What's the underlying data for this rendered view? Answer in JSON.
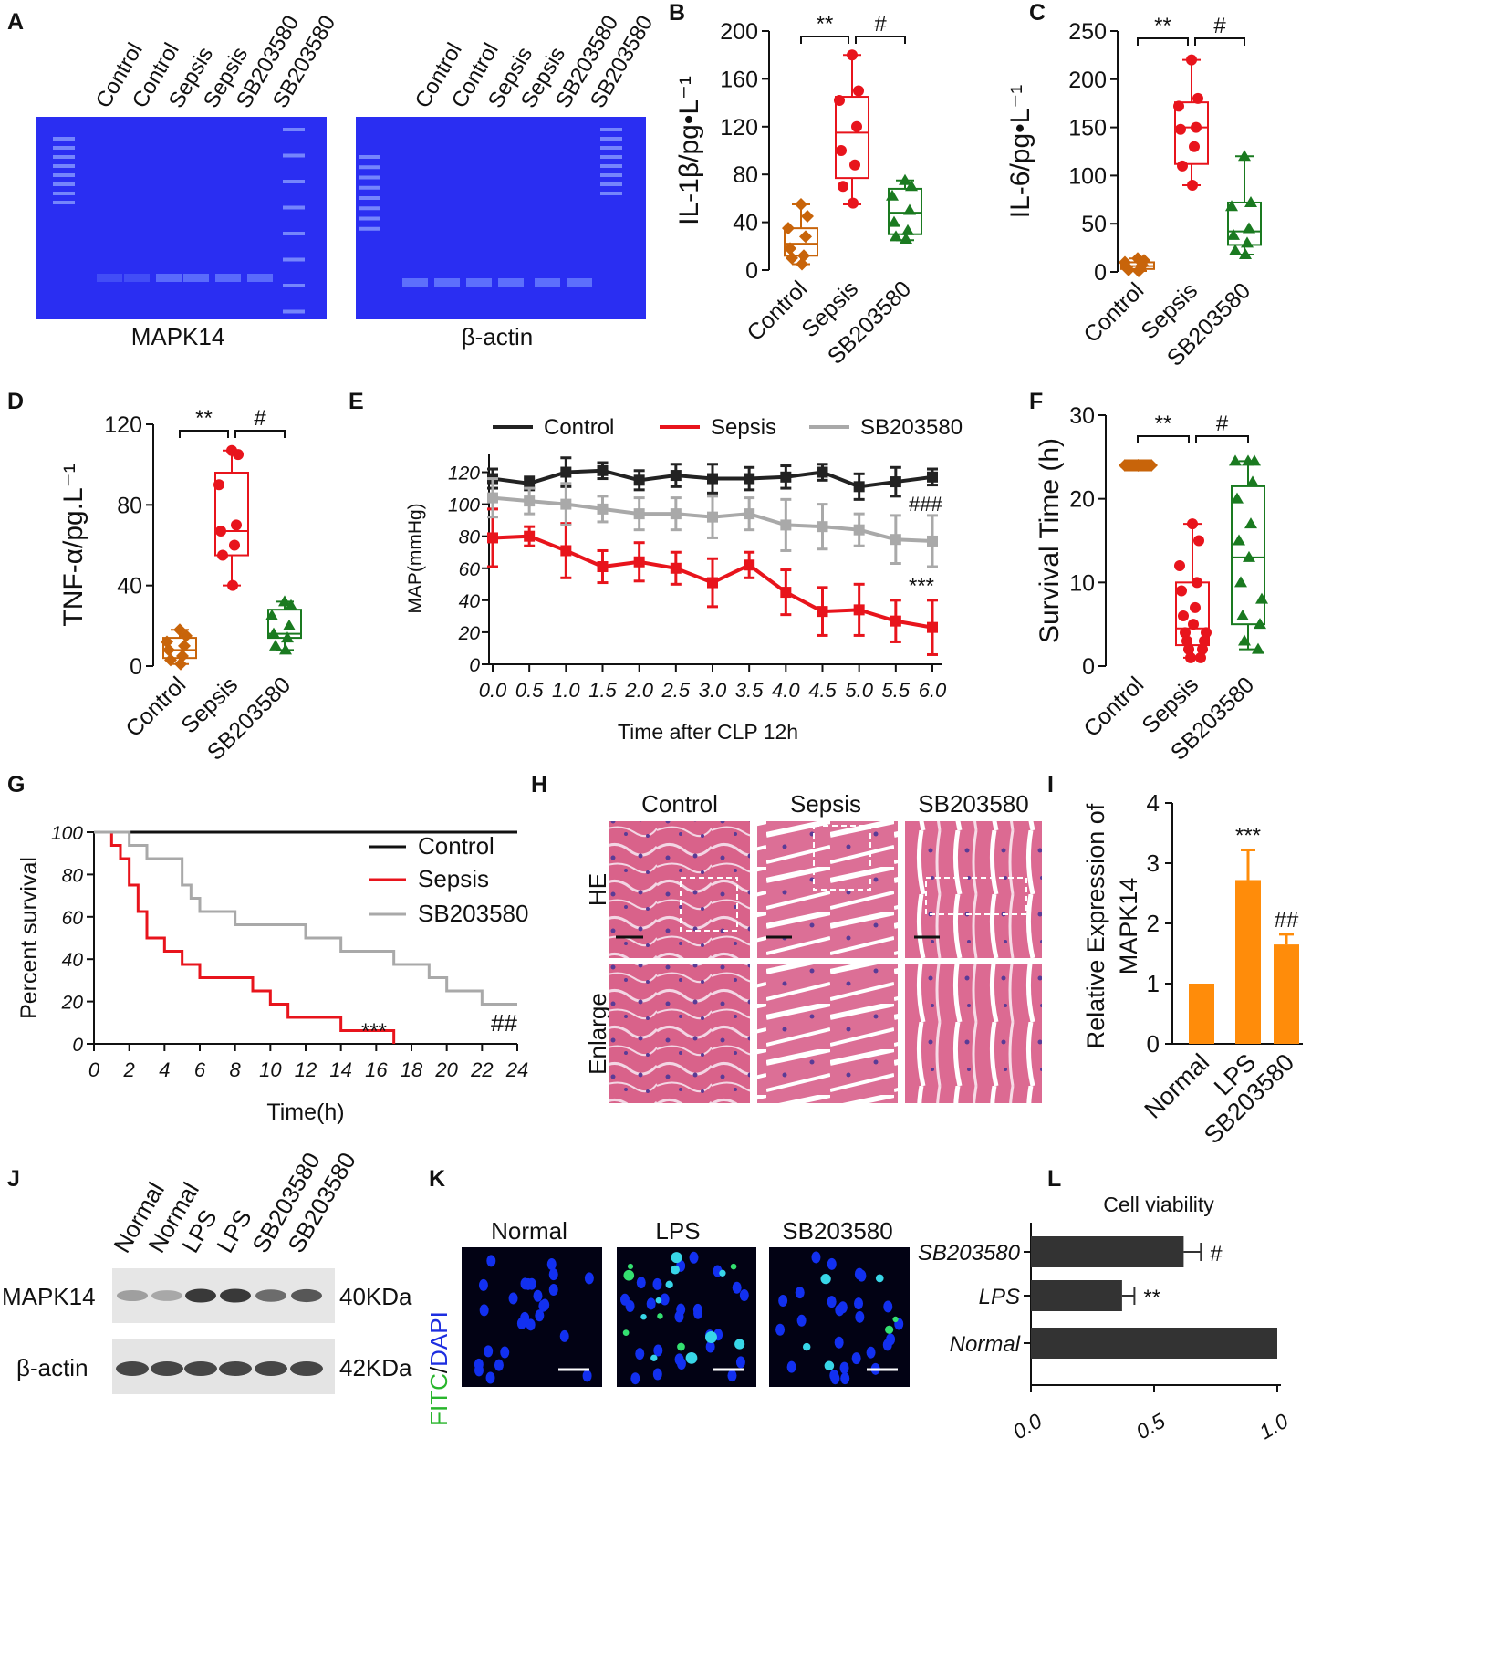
{
  "panels": {
    "A": {
      "letter": "A",
      "lanes_left": [
        "Control",
        "Control",
        "Sepsis",
        "Sepsis",
        "SB203580",
        "SB203580"
      ],
      "lanes_right": [
        "Control",
        "Control",
        "Sepsis",
        "Sepsis",
        "SB203580",
        "SB203580"
      ],
      "label_left": "MAPK14",
      "label_right": "β-actin",
      "gel_color": "#2a2ef2"
    },
    "H": {
      "letter": "H",
      "cols": [
        "Control",
        "Sepsis",
        "SB203580"
      ],
      "rows": [
        "HE",
        "Enlarge"
      ]
    },
    "J": {
      "letter": "J",
      "lanes": [
        "Normal",
        "Normal",
        "LPS",
        "LPS",
        "SB203580",
        "SB203580"
      ],
      "row1": "MAPK14",
      "row1_size": "40KDa",
      "row2": "β-actin",
      "row2_size": "42KDa",
      "band1_intensity": [
        0.35,
        0.3,
        0.85,
        0.85,
        0.6,
        0.7
      ],
      "band2_intensity": [
        0.85,
        0.85,
        0.85,
        0.85,
        0.85,
        0.85
      ]
    },
    "K": {
      "letter": "K",
      "cols": [
        "Normal",
        "LPS",
        "SB203580"
      ],
      "side_fitc": "FITC",
      "side_sep": "/",
      "side_dapi": "DAPI"
    }
  },
  "chart_data": [
    {
      "id": "B",
      "type": "box",
      "letter": "B",
      "ylabel": "IL-1β/pg•L⁻¹",
      "ylim": [
        0,
        200
      ],
      "yticks": [
        "0",
        "40",
        "80",
        "120",
        "160",
        "200"
      ],
      "categories": [
        "Control",
        "Sepsis",
        "SB203580"
      ],
      "colors": [
        "#c8640a",
        "#e8141c",
        "#1a7a20"
      ],
      "markers": [
        "diamond",
        "circle",
        "triangle"
      ],
      "boxes": [
        {
          "min": 5,
          "q1": 12,
          "median": 22,
          "q3": 35,
          "max": 55
        },
        {
          "min": 55,
          "q1": 77,
          "median": 115,
          "q3": 145,
          "max": 180
        },
        {
          "min": 25,
          "q1": 30,
          "median": 48,
          "q3": 68,
          "max": 75
        }
      ],
      "points": [
        [
          55,
          45,
          35,
          28,
          18,
          12,
          10,
          5
        ],
        [
          180,
          150,
          142,
          120,
          100,
          88,
          70,
          56
        ],
        [
          75,
          70,
          62,
          50,
          40,
          33,
          28,
          26
        ]
      ],
      "sig": [
        {
          "from": 0,
          "to": 1,
          "text": "**"
        },
        {
          "from": 1,
          "to": 2,
          "text": "#"
        }
      ]
    },
    {
      "id": "C",
      "type": "box",
      "letter": "C",
      "ylabel": "IL-6/pg•L⁻¹",
      "ylim": [
        0,
        250
      ],
      "yticks": [
        "0",
        "50",
        "100",
        "150",
        "200",
        "250"
      ],
      "categories": [
        "Control",
        "Sepsis",
        "SB203580"
      ],
      "colors": [
        "#c8640a",
        "#e8141c",
        "#1a7a20"
      ],
      "markers": [
        "diamond",
        "circle",
        "triangle"
      ],
      "boxes": [
        {
          "min": 1,
          "q1": 3,
          "median": 6,
          "q3": 10,
          "max": 14
        },
        {
          "min": 90,
          "q1": 112,
          "median": 150,
          "q3": 176,
          "max": 220
        },
        {
          "min": 18,
          "q1": 28,
          "median": 42,
          "q3": 72,
          "max": 120
        }
      ],
      "points": [
        [
          14,
          12,
          10,
          7,
          5,
          3,
          2,
          1
        ],
        [
          220,
          180,
          172,
          150,
          148,
          130,
          110,
          90
        ],
        [
          120,
          72,
          68,
          45,
          38,
          30,
          22,
          18
        ]
      ],
      "sig": [
        {
          "from": 0,
          "to": 1,
          "text": "**"
        },
        {
          "from": 1,
          "to": 2,
          "text": "#"
        }
      ]
    },
    {
      "id": "D",
      "type": "box",
      "letter": "D",
      "ylabel": "TNF-α/pg.L⁻¹",
      "ylim": [
        0,
        120
      ],
      "yticks": [
        "0",
        "40",
        "80",
        "120"
      ],
      "categories": [
        "Control",
        "Sepsis",
        "SB203580"
      ],
      "colors": [
        "#c8640a",
        "#e8141c",
        "#1a7a20"
      ],
      "markers": [
        "diamond",
        "circle",
        "triangle"
      ],
      "boxes": [
        {
          "min": 1,
          "q1": 4,
          "median": 8,
          "q3": 14,
          "max": 18
        },
        {
          "min": 40,
          "q1": 55,
          "median": 67,
          "q3": 96,
          "max": 107
        },
        {
          "min": 8,
          "q1": 14,
          "median": 16,
          "q3": 28,
          "max": 32
        }
      ],
      "points": [
        [
          18,
          15,
          12,
          10,
          8,
          5,
          3,
          1
        ],
        [
          107,
          105,
          90,
          70,
          67,
          60,
          55,
          40
        ],
        [
          32,
          30,
          25,
          20,
          16,
          14,
          10,
          8
        ]
      ],
      "sig": [
        {
          "from": 0,
          "to": 1,
          "text": "**"
        },
        {
          "from": 1,
          "to": 2,
          "text": "#"
        }
      ]
    },
    {
      "id": "E",
      "type": "line",
      "letter": "E",
      "ylabel": "MAP(mmHg)",
      "xlabel": "Time after CLP 12h",
      "x": [
        "0.0",
        "0.5",
        "1.0",
        "1.5",
        "2.0",
        "2.5",
        "3.0",
        "3.5",
        "4.0",
        "4.5",
        "5.0",
        "5.5",
        "6.0"
      ],
      "ylim": [
        0,
        130
      ],
      "yticks": [
        "0",
        "20",
        "40",
        "60",
        "80",
        "100",
        "120"
      ],
      "series": [
        {
          "name": "Control",
          "color": "#222222",
          "values": [
            116,
            113,
            120,
            121,
            115,
            118,
            116,
            116,
            117,
            120,
            111,
            114,
            117
          ],
          "err": [
            6,
            4,
            9,
            5,
            6,
            7,
            9,
            7,
            7,
            5,
            8,
            9,
            5
          ]
        },
        {
          "name": "Sepsis",
          "color": "#e8141c",
          "values": [
            79,
            80,
            71,
            61,
            64,
            60,
            51,
            62,
            45,
            33,
            34,
            27,
            23
          ],
          "err": [
            18,
            6,
            17,
            10,
            12,
            10,
            15,
            8,
            14,
            15,
            16,
            13,
            17
          ]
        },
        {
          "name": "SB203580",
          "color": "#a9a9a9",
          "values": [
            104,
            102,
            100,
            97,
            94,
            94,
            92,
            94,
            87,
            86,
            84,
            78,
            77
          ],
          "err": [
            12,
            8,
            13,
            8,
            10,
            10,
            13,
            10,
            16,
            14,
            10,
            15,
            16
          ]
        }
      ],
      "annotations": [
        "###",
        "***"
      ]
    },
    {
      "id": "F",
      "type": "box",
      "letter": "F",
      "ylabel": "Survival Time (h)",
      "ylim": [
        0,
        30
      ],
      "yticks": [
        "0",
        "10",
        "20",
        "30"
      ],
      "categories": [
        "Control",
        "Sepsis",
        "SB203580"
      ],
      "colors": [
        "#c8640a",
        "#e8141c",
        "#1a7a20"
      ],
      "markers": [
        "diamond",
        "circle",
        "triangle"
      ],
      "boxes": [
        {
          "min": 24,
          "q1": 24,
          "median": 24,
          "q3": 24,
          "max": 24
        },
        {
          "min": 1,
          "q1": 2.5,
          "median": 4.5,
          "q3": 10,
          "max": 17
        },
        {
          "min": 2,
          "q1": 5,
          "median": 13,
          "q3": 21.5,
          "max": 24.5
        }
      ],
      "points": [
        [
          24,
          24,
          24,
          24,
          24,
          24,
          24,
          24,
          24,
          24,
          24,
          24,
          24,
          24,
          24,
          24
        ],
        [
          17,
          15,
          12,
          10,
          9,
          7,
          6,
          5,
          4,
          4,
          3,
          3,
          2,
          2,
          1,
          1
        ],
        [
          24.5,
          24.5,
          24.5,
          22,
          20,
          17,
          15,
          13,
          10,
          8,
          6,
          5,
          3,
          2
        ]
      ],
      "sig": [
        {
          "from": 0,
          "to": 1,
          "text": "**"
        },
        {
          "from": 1,
          "to": 2,
          "text": "#"
        }
      ]
    },
    {
      "id": "G",
      "type": "step",
      "letter": "G",
      "ylabel": "Percent survival",
      "xlabel": "Time(h)",
      "xlim": [
        0,
        24
      ],
      "xticks": [
        "0",
        "2",
        "4",
        "6",
        "8",
        "10",
        "12",
        "14",
        "16",
        "18",
        "20",
        "22",
        "24"
      ],
      "ylim": [
        0,
        100
      ],
      "yticks": [
        "0",
        "20",
        "40",
        "60",
        "80",
        "100"
      ],
      "series": [
        {
          "name": "Control",
          "color": "#111111",
          "points": [
            [
              0,
              100
            ],
            [
              24,
              100
            ]
          ]
        },
        {
          "name": "Sepsis",
          "color": "#e8141c",
          "points": [
            [
              0,
              100
            ],
            [
              1,
              100
            ],
            [
              1,
              93.75
            ],
            [
              1.5,
              93.75
            ],
            [
              1.5,
              87.5
            ],
            [
              2,
              87.5
            ],
            [
              2,
              75
            ],
            [
              2.5,
              75
            ],
            [
              2.5,
              62.5
            ],
            [
              3,
              62.5
            ],
            [
              3,
              50
            ],
            [
              4,
              50
            ],
            [
              4,
              43.75
            ],
            [
              5,
              43.75
            ],
            [
              5,
              37.5
            ],
            [
              6,
              37.5
            ],
            [
              6,
              31.25
            ],
            [
              9,
              31.25
            ],
            [
              9,
              25
            ],
            [
              10,
              25
            ],
            [
              10,
              18.75
            ],
            [
              11,
              18.75
            ],
            [
              11,
              12.5
            ],
            [
              12,
              12.5
            ],
            [
              12,
              12.5
            ],
            [
              14,
              12.5
            ],
            [
              14,
              6.25
            ],
            [
              17,
              6.25
            ],
            [
              17,
              0
            ]
          ]
        },
        {
          "name": "SB203580",
          "color": "#a9a9a9",
          "points": [
            [
              0,
              100
            ],
            [
              2,
              100
            ],
            [
              2,
              93.75
            ],
            [
              3,
              93.75
            ],
            [
              3,
              87.5
            ],
            [
              5,
              87.5
            ],
            [
              5,
              75
            ],
            [
              5.5,
              75
            ],
            [
              5.5,
              68.75
            ],
            [
              6,
              68.75
            ],
            [
              6,
              62.5
            ],
            [
              8,
              62.5
            ],
            [
              8,
              56.25
            ],
            [
              12,
              56.25
            ],
            [
              12,
              50
            ],
            [
              14,
              50
            ],
            [
              14,
              43.75
            ],
            [
              17,
              43.75
            ],
            [
              17,
              37.5
            ],
            [
              19,
              37.5
            ],
            [
              19,
              31.25
            ],
            [
              20,
              31.25
            ],
            [
              20,
              25
            ],
            [
              22,
              25
            ],
            [
              22,
              18.75
            ],
            [
              24,
              18.75
            ]
          ]
        }
      ],
      "annotations": [
        "***",
        "##"
      ]
    },
    {
      "id": "I",
      "type": "bar",
      "letter": "I",
      "ylabel_line1": "Relative Expression of",
      "ylabel_line2": "MAPK14",
      "ylim": [
        0,
        4
      ],
      "yticks": [
        "0",
        "1",
        "2",
        "3",
        "4"
      ],
      "categories": [
        "Normal",
        "LPS",
        "SB203580"
      ],
      "values": [
        1.0,
        2.72,
        1.65
      ],
      "err": [
        0,
        0.5,
        0.17
      ],
      "color": "#ff8c0a",
      "annotations": [
        "",
        "***",
        "##"
      ]
    },
    {
      "id": "L",
      "type": "hbar",
      "letter": "L",
      "title": "Cell viability",
      "xlim": [
        0,
        1
      ],
      "xticks": [
        "0.0",
        "0.5",
        "1.0"
      ],
      "categories": [
        "SB203580",
        "LPS",
        "Normal"
      ],
      "values": [
        0.62,
        0.37,
        1.0
      ],
      "err": [
        0.07,
        0.05,
        0
      ],
      "color": "#333333",
      "annotations": [
        "#",
        "**",
        ""
      ]
    }
  ]
}
